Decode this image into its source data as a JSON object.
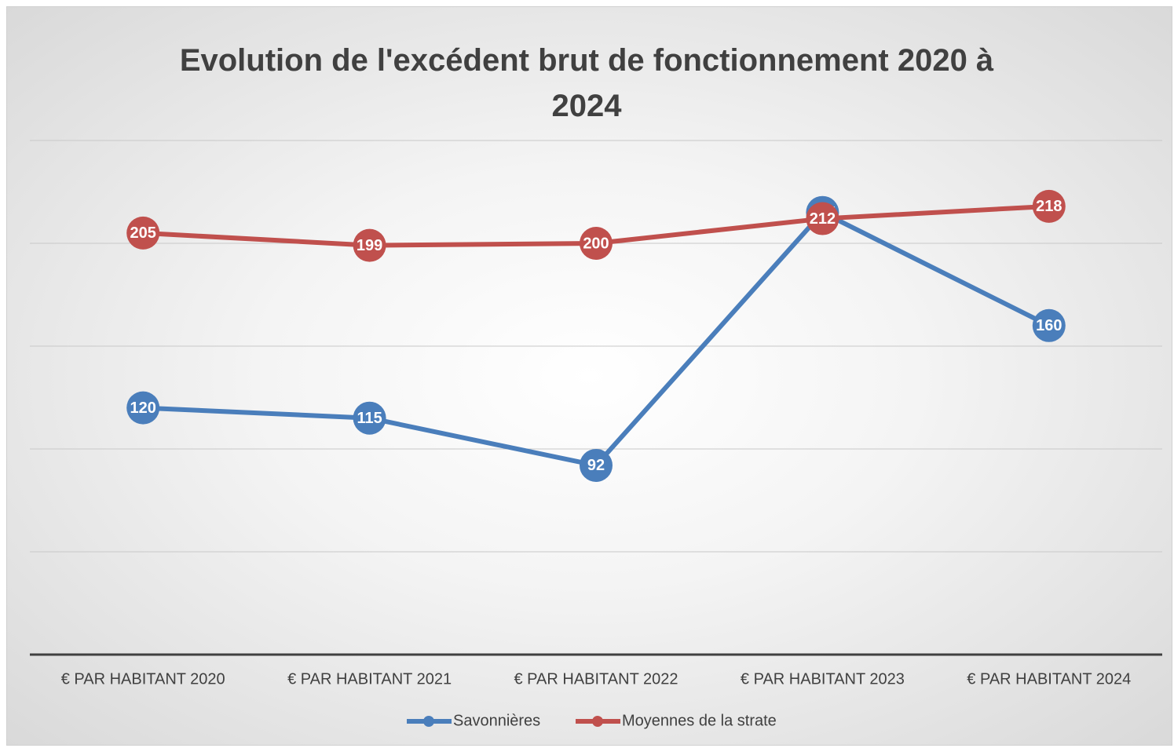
{
  "chart_data": {
    "type": "line",
    "title": "Evolution de l'excédent brut de fonctionnement 2020 à 2024",
    "categories": [
      "€ PAR HABITANT 2020",
      "€ PAR HABITANT 2021",
      "€ PAR HABITANT 2022",
      "€ PAR HABITANT 2023",
      "€ PAR HABITANT 2024"
    ],
    "series": [
      {
        "name": "Savonnières",
        "color": "#4a7ebb",
        "values": [
          120,
          115,
          92,
          215,
          160
        ]
      },
      {
        "name": "Moyennes de la strate",
        "color": "#c0504d",
        "values": [
          205,
          199,
          200,
          212,
          218
        ]
      }
    ],
    "ylim": [
      0,
      250
    ],
    "yticks": [
      0,
      50,
      100,
      150,
      200,
      250
    ],
    "grid": true,
    "legend": "bottom"
  }
}
